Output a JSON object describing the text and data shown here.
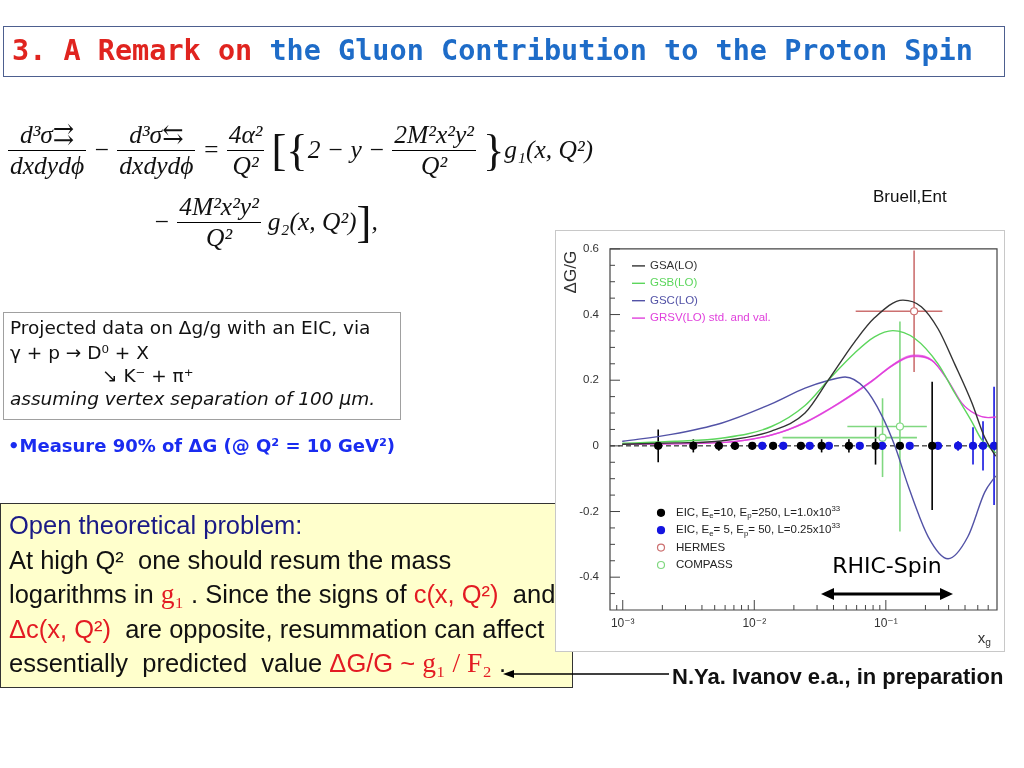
{
  "chart_data": {
    "type": "line",
    "title": "3. A Remark on the Gluon Contribution to the Proton Spin",
    "xlabel": "x$_{g}$",
    "ylabel": "ΔG/G",
    "annotations": [
      "Bruell,Ent",
      "d³σ⇉",
      "dxdydϕ",
      "−",
      "d³σ⇆",
      "dxdydϕ",
      "=",
      "4α²",
      "Q²",
      "[{2 − y −",
      "2M²x²y²",
      "Q²",
      "}g₁(x, Q²)",
      "−",
      "4M²x²y²",
      "Q²",
      "g₂(x, Q²)],",
      "Projected data on Δg/g with an EIC, via",
      "γ + p → D⁰ + X",
      "↘ K⁻ + π⁺",
      "assuming vertex separation of 100 μm.",
      "•Measure 90% of ΔG (@ Q² = 10 GeV²)",
      "Open theoretical problem:",
      "At high Q²  one should resum the mass",
      "logarithms in ",
      "g₁",
      " . Since the signs of ",
      "c(x, Q²)",
      "  and",
      "Δc(x, Q²)",
      "  are opposite, resummation can affect",
      "essentially  predicted  value ",
      "ΔG/G ~ ",
      "g₁ / F₂",
      " .",
      "N.Ya. Ivanov e.a., in preparation",
      "RHIC-Spin"
    ],
    "log": "x",
    "xlim": [
      0.0008,
      0.7
    ],
    "ylim": [
      -0.5,
      0.6
    ],
    "xticks": [
      {
        "value": 0.0009,
        "label": null
      },
      {
        "value": 0.001,
        "label": "10⁻³"
      },
      {
        "value": 0.002,
        "label": null
      },
      {
        "value": 0.003,
        "label": null
      },
      {
        "value": 0.004,
        "label": null
      },
      {
        "value": 0.005,
        "label": null
      },
      {
        "value": 0.006,
        "label": null
      },
      {
        "value": 0.007,
        "label": null
      },
      {
        "value": 0.008,
        "label": null
      },
      {
        "value": 0.009,
        "label": null
      },
      {
        "value": 0.01,
        "label": "10⁻²"
      },
      {
        "value": 0.02,
        "label": null
      },
      {
        "value": 0.03,
        "label": null
      },
      {
        "value": 0.04,
        "label": null
      },
      {
        "value": 0.05,
        "label": null
      },
      {
        "value": 0.06,
        "label": null
      },
      {
        "value": 0.07,
        "label": null
      },
      {
        "value": 0.08,
        "label": null
      },
      {
        "value": 0.09,
        "label": null
      },
      {
        "value": 0.1,
        "label": "10⁻¹"
      },
      {
        "value": 0.2,
        "label": null
      },
      {
        "value": 0.3,
        "label": null
      },
      {
        "value": 0.4,
        "label": null
      },
      {
        "value": 0.5,
        "label": null
      },
      {
        "value": 0.6,
        "label": null
      }
    ],
    "yticks": [
      {
        "value": -0.45,
        "label": null
      },
      -0.4,
      {
        "value": -0.35,
        "label": null
      },
      {
        "value": -0.3,
        "label": null
      },
      {
        "value": -0.25,
        "label": null
      },
      -0.2,
      {
        "value": -0.15,
        "label": null
      },
      {
        "value": -0.1,
        "label": null
      },
      {
        "value": -0.05,
        "label": null
      },
      0,
      {
        "value": 0.05,
        "label": null
      },
      {
        "value": 0.1,
        "label": null
      },
      {
        "value": 0.15,
        "label": null
      },
      0.2,
      {
        "value": 0.25,
        "label": null
      },
      {
        "value": 0.3,
        "label": null
      },
      {
        "value": 0.35,
        "label": null
      },
      0.4,
      {
        "value": 0.45,
        "label": null
      },
      {
        "value": 0.5,
        "label": null
      },
      {
        "value": 0.55,
        "label": null
      },
      0.6
    ],
    "legend": "top left",
    "ref_lines": [
      {
        "axis": "y",
        "value": 0,
        "color": "#000000",
        "line_style": "dashed"
      }
    ],
    "series": [
      {
        "name": "GSA(LO)",
        "color": "#333333",
        "x": [
          0.001,
          0.0025,
          0.0056,
          0.0135,
          0.0243,
          0.0365,
          0.058,
          0.082,
          0.135,
          0.186,
          0.25,
          0.334,
          0.45,
          0.565,
          0.68
        ],
        "values": [
          0.005,
          0.009,
          0.015,
          0.045,
          0.1,
          0.2,
          0.317,
          0.39,
          0.444,
          0.424,
          0.356,
          0.249,
          0.132,
          0.025,
          -0.03
        ]
      },
      {
        "name": "GSB(LO)",
        "color": "#5cd65c",
        "x": [
          0.001,
          0.0025,
          0.0056,
          0.0135,
          0.0243,
          0.0365,
          0.058,
          0.082,
          0.113,
          0.166,
          0.25,
          0.334,
          0.45,
          0.533,
          0.68
        ],
        "values": [
          0.008,
          0.014,
          0.023,
          0.059,
          0.123,
          0.2,
          0.283,
          0.332,
          0.351,
          0.327,
          0.249,
          0.161,
          0.074,
          0.02,
          -0.02
        ]
      },
      {
        "name": "GSC(LO)",
        "color": "#5252a6",
        "x": [
          0.001,
          0.00234,
          0.0056,
          0.0135,
          0.0243,
          0.0365,
          0.049,
          0.069,
          0.093,
          0.117,
          0.148,
          0.21,
          0.297,
          0.42,
          0.565,
          0.68
        ],
        "values": [
          0.014,
          0.035,
          0.069,
          0.128,
          0.176,
          0.199,
          0.21,
          0.176,
          0.093,
          0,
          -0.122,
          -0.277,
          -0.344,
          -0.277,
          -0.141,
          -0.093
        ]
      },
      {
        "name": "GRSV(LO) std. and val.",
        "color": "#e040dc",
        "x": [
          0.001,
          0.0056,
          0.0135,
          0.0243,
          0.0436,
          0.078,
          0.117,
          0.162,
          0.223,
          0.297,
          0.377,
          0.475,
          0.6,
          0.68
        ],
        "values": [
          0.005,
          0.01,
          0.033,
          0.071,
          0.129,
          0.197,
          0.25,
          0.274,
          0.261,
          0.199,
          0.131,
          0.098,
          0.086,
          0.088
        ],
        "lower": [
          0.004,
          0.009,
          0.031,
          0.068,
          0.125,
          0.193,
          0.246,
          0.27,
          0.258,
          0.197,
          0.13,
          0.097,
          0.085,
          0.087
        ],
        "upper": [
          0.005,
          0.011,
          0.035,
          0.074,
          0.132,
          0.2,
          0.254,
          0.278,
          0.264,
          0.2,
          0.132,
          0.098,
          0.086,
          0.088
        ]
      },
      {
        "name": "EIC, E$_{e}$=10, E$_{p}$=250, L=1.0x10$^{33}$",
        "type": "scatter",
        "marker": "circle",
        "color": "#000000",
        "x": [
          0.00186,
          0.00344,
          0.00538,
          0.00713,
          0.00965,
          0.0139,
          0.0226,
          0.0325,
          0.0524,
          0.0835,
          0.128,
          0.225
        ],
        "values": [
          0,
          0,
          0,
          0,
          0,
          0,
          0,
          0,
          0,
          0,
          0,
          0
        ],
        "errors": [
          0.05,
          0.02,
          0.015,
          0.012,
          0.01,
          0.012,
          0.012,
          0.02,
          0.02,
          0.057,
          null,
          0.195
        ]
      },
      {
        "name": "EIC, E$_{e}$= 5, E$_{p}$= 50, L=0.25x10$^{33}$",
        "type": "scatter",
        "marker": "circle",
        "color": "#1414e0",
        "x": [
          0.0115,
          0.0166,
          0.0264,
          0.0369,
          0.0634,
          0.0937,
          0.152,
          0.249,
          0.354,
          0.46,
          0.548,
          0.665
        ],
        "values": [
          0,
          0,
          0,
          0,
          0,
          0,
          0,
          0,
          0,
          0,
          0,
          0
        ],
        "errors": [
          0.012,
          0.012,
          0.01,
          0.01,
          0.01,
          0.01,
          0.01,
          0.01,
          0.015,
          0.057,
          0.075,
          0.18
        ]
      },
      {
        "name": "HERMES",
        "type": "scatter",
        "marker": "circle",
        "color": "#cc7070",
        "x": [
          0.164
        ],
        "values": [
          0.41
        ],
        "errors": [
          0.185
        ],
        "xerrors": [
          0.105
        ]
      },
      {
        "name": "COMPASS",
        "type": "scatter",
        "marker": "circle",
        "color": "#80d880",
        "x": [
          0.0944,
          0.128
        ],
        "values": [
          0.025,
          0.059
        ],
        "errors": [
          0.12,
          0.32
        ],
        "xerrors": [
          0.078,
          0.077
        ]
      }
    ]
  }
}
